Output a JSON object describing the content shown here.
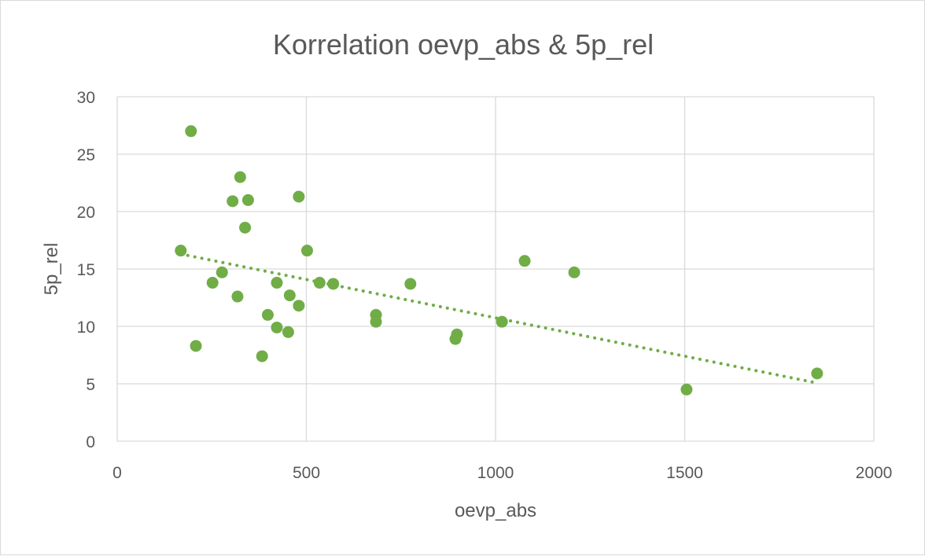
{
  "chart_data": {
    "type": "scatter",
    "title": "Korrelation oevp_abs & 5p_rel",
    "xlabel": "oevp_abs",
    "ylabel": "5p_rel",
    "xlim": [
      0,
      2000
    ],
    "ylim": [
      0,
      30
    ],
    "x_ticks": [
      0,
      500,
      1000,
      1500,
      2000
    ],
    "y_ticks": [
      0,
      5,
      10,
      15,
      20,
      25,
      30
    ],
    "grid": true,
    "legend": "none",
    "point_color": "#70ad47",
    "trendline": {
      "type": "linear",
      "style": "dotted",
      "color": "#70ad47",
      "x_range": [
        168,
        1845
      ],
      "y_start": 16.3,
      "y_end": 5.1
    },
    "points": [
      {
        "x": 168,
        "y": 16.6
      },
      {
        "x": 195,
        "y": 27.0
      },
      {
        "x": 208,
        "y": 8.3
      },
      {
        "x": 252,
        "y": 13.8
      },
      {
        "x": 277,
        "y": 14.7
      },
      {
        "x": 305,
        "y": 20.9
      },
      {
        "x": 318,
        "y": 12.6
      },
      {
        "x": 325,
        "y": 23.0
      },
      {
        "x": 338,
        "y": 18.6
      },
      {
        "x": 346,
        "y": 21.0
      },
      {
        "x": 383,
        "y": 7.4
      },
      {
        "x": 398,
        "y": 11.0
      },
      {
        "x": 422,
        "y": 13.8
      },
      {
        "x": 422,
        "y": 9.9
      },
      {
        "x": 452,
        "y": 9.5
      },
      {
        "x": 456,
        "y": 12.7
      },
      {
        "x": 480,
        "y": 11.8
      },
      {
        "x": 480,
        "y": 21.3
      },
      {
        "x": 502,
        "y": 16.6
      },
      {
        "x": 535,
        "y": 13.8
      },
      {
        "x": 571,
        "y": 13.7
      },
      {
        "x": 684,
        "y": 11.0
      },
      {
        "x": 684,
        "y": 10.4
      },
      {
        "x": 775,
        "y": 13.7
      },
      {
        "x": 894,
        "y": 8.9
      },
      {
        "x": 898,
        "y": 9.3
      },
      {
        "x": 1017,
        "y": 10.4
      },
      {
        "x": 1077,
        "y": 15.7
      },
      {
        "x": 1208,
        "y": 14.7
      },
      {
        "x": 1505,
        "y": 4.5
      },
      {
        "x": 1850,
        "y": 5.9
      }
    ]
  }
}
